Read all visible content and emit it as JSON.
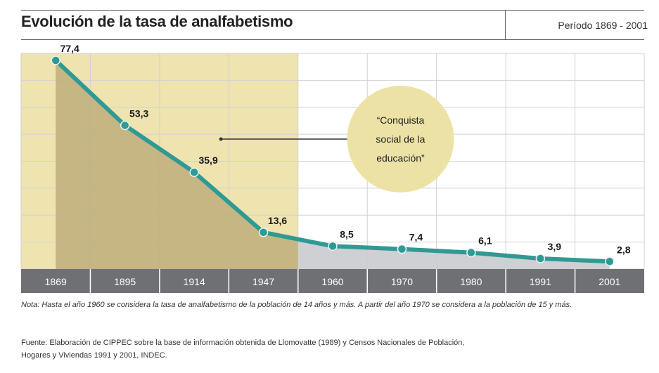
{
  "header": {
    "title": "Evolución de la tasa de analfabetismo",
    "period": "Período 1869 - 2001"
  },
  "chart_data": {
    "type": "line",
    "title": "Evolución de la tasa de analfabetismo",
    "categories": [
      "1869",
      "1895",
      "1914",
      "1947",
      "1960",
      "1970",
      "1980",
      "1991",
      "2001"
    ],
    "values": [
      77.4,
      53.3,
      35.9,
      13.6,
      8.5,
      7.4,
      6.1,
      3.9,
      2.8
    ],
    "value_labels": [
      "77,4",
      "53,3",
      "35,9",
      "13,6",
      "8,5",
      "7,4",
      "6,1",
      "3,9",
      "2,8"
    ],
    "ylim": [
      0,
      80
    ],
    "xlabel": "",
    "ylabel": "",
    "grid": true,
    "highlight_period": [
      "1869",
      "1947"
    ],
    "annotation": {
      "lines": [
        "“Conquista",
        "social de la",
        "educación”"
      ]
    },
    "colors": {
      "line": "#2f9a93",
      "marker_stroke": "#e8f4f3",
      "highlight_bg": "#efe3b0",
      "area_early": "#bdae7c",
      "area_late": "#c9cbcf",
      "bubble": "#ece2a6",
      "axis_bar": "#6f7074",
      "grid": "#d2d2d2"
    }
  },
  "footer": {
    "note": "Nota: Hasta el año 1960 se considera la tasa de analfabetismo de la población de 14 años y más. A partir del año 1970 se considera a la población de 15 y más.",
    "source_line1": "Fuente: Elaboración de CIPPEC sobre la base de información obtenida de Llomovatte (1989) y Censos Nacionales de Población,",
    "source_line2": "Hogares y Viviendas 1991 y 2001, INDEC."
  }
}
